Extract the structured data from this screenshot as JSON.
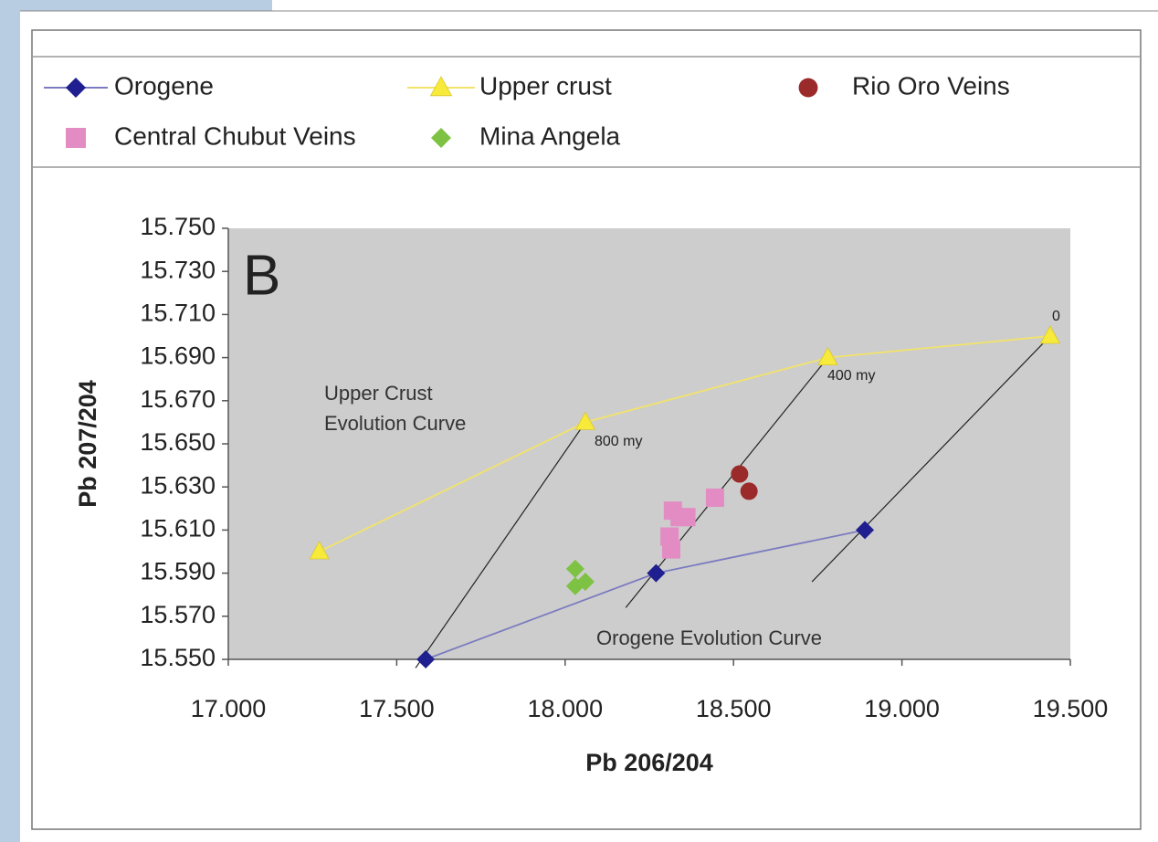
{
  "chart_data": {
    "type": "scatter",
    "x_label": "Pb 206/204",
    "y_label": "Pb 207/204",
    "xlim": [
      17.0,
      19.5
    ],
    "ylim": [
      15.55,
      15.75
    ],
    "xticks": [
      {
        "value": 17.0,
        "label": "17.000"
      },
      {
        "value": 17.5,
        "label": "17.500"
      },
      {
        "value": 18.0,
        "label": "18.000"
      },
      {
        "value": 18.5,
        "label": "18.500"
      },
      {
        "value": 19.0,
        "label": "19.000"
      },
      {
        "value": 19.5,
        "label": "19.500"
      }
    ],
    "yticks": [
      {
        "value": 15.55,
        "label": "15.550"
      },
      {
        "value": 15.57,
        "label": "15.570"
      },
      {
        "value": 15.59,
        "label": "15.590"
      },
      {
        "value": 15.61,
        "label": "15.610"
      },
      {
        "value": 15.63,
        "label": "15.630"
      },
      {
        "value": 15.65,
        "label": "15.650"
      },
      {
        "value": 15.67,
        "label": "15.670"
      },
      {
        "value": 15.69,
        "label": "15.690"
      },
      {
        "value": 15.71,
        "label": "15.710"
      },
      {
        "value": 15.73,
        "label": "15.730"
      },
      {
        "value": 15.75,
        "label": "15.750"
      }
    ],
    "series": [
      {
        "name": "Orogene",
        "color": "#1f1f8f",
        "line_color": "#7b7bc0",
        "marker": "diamond",
        "line": true,
        "x": [
          17.586,
          18.27,
          18.89
        ],
        "y": [
          15.55,
          15.59,
          15.61
        ]
      },
      {
        "name": "Upper crust",
        "color": "#f7ea3a",
        "line_color": "#f2e36a",
        "marker": "triangle",
        "line": true,
        "x": [
          17.27,
          18.06,
          18.78,
          19.44
        ],
        "y": [
          15.6,
          15.66,
          15.69,
          15.7
        ]
      },
      {
        "name": "Rio Oro Veins",
        "color": "#9b2a2a",
        "marker": "circle",
        "line": false,
        "x": [
          18.518,
          18.546
        ],
        "y": [
          15.636,
          15.628
        ]
      },
      {
        "name": "Central Chubut Veins",
        "color": "#e38cc4",
        "marker": "square",
        "line": false,
        "x": [
          18.32,
          18.34,
          18.36,
          18.31,
          18.315,
          18.445
        ],
        "y": [
          15.619,
          15.616,
          15.616,
          15.607,
          15.601,
          15.625
        ]
      },
      {
        "name": "Mina Angela",
        "color": "#7dc242",
        "marker": "diamond",
        "line": false,
        "x": [
          18.03,
          18.03,
          18.06
        ],
        "y": [
          15.592,
          15.584,
          15.586
        ]
      }
    ],
    "isochrons": [
      {
        "x": [
          18.06,
          17.556
        ],
        "y": [
          15.66,
          15.546
        ]
      },
      {
        "x": [
          18.78,
          18.18
        ],
        "y": [
          15.69,
          15.574
        ]
      },
      {
        "x": [
          19.44,
          18.733
        ],
        "y": [
          15.7,
          15.586
        ]
      }
    ],
    "annotations": [
      "B",
      "0",
      "400 my",
      "800 my",
      "Upper Crust",
      "Evolution Curve",
      "Orogene Evolution Curve"
    ]
  }
}
